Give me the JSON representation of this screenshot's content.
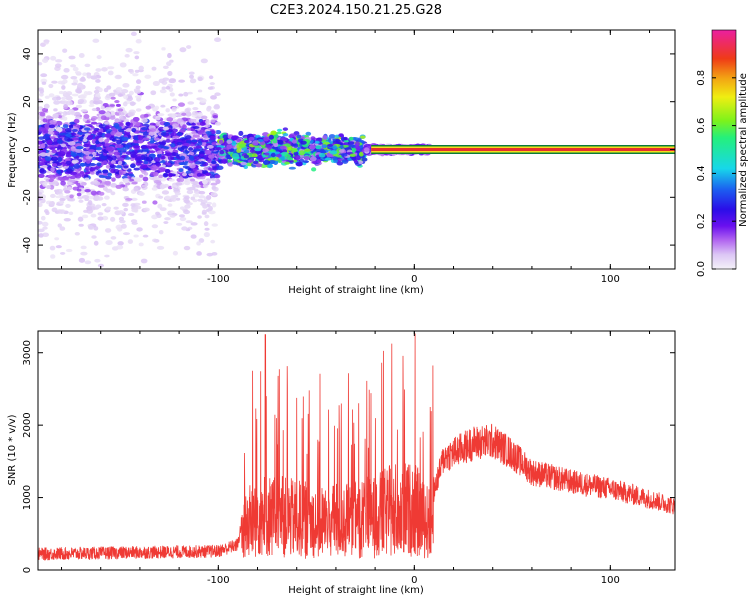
{
  "title": "C2E3.2024.150.21.25.G28",
  "colors": {
    "snr_line": "#ef3a34",
    "tone_line_core": "#e6312c",
    "tone_line_outer": "#0b7a3b",
    "colormap": [
      "#f4f2f8",
      "#dcc7f5",
      "#b266f0",
      "#6a10ef",
      "#2a0ee8",
      "#1c5cf0",
      "#17d7ea",
      "#25f07b",
      "#7df21b",
      "#f0ee12",
      "#f3a213",
      "#ef3b17",
      "#ec1fa0"
    ]
  },
  "chart_data": [
    {
      "type": "heatmap",
      "xlabel": "Height of straight line (km)",
      "ylabel": "Frequency (Hz)",
      "xlim": [
        -192,
        133
      ],
      "ylim": [
        -50,
        50
      ],
      "x_ticks": [
        "-100",
        "0",
        "100"
      ],
      "x_tick_values": [
        -100,
        0,
        100
      ],
      "y_ticks": [
        "-40",
        "-20",
        "0",
        "20",
        "40"
      ],
      "y_tick_values": [
        -40,
        -20,
        0,
        20,
        40
      ],
      "colorbar": {
        "label": "Normalized spectral amplitude",
        "range": [
          0,
          1
        ],
        "ticks": [
          "0.0",
          "0.2",
          "0.4",
          "0.6",
          "0.8"
        ],
        "tick_values": [
          0,
          0.2,
          0.4,
          0.6,
          0.8
        ]
      },
      "regions": [
        {
          "x_range": [
            -192,
            -100
          ],
          "freq_spread_hz": 50,
          "amplitude": 0.15,
          "core_spread_hz": 8,
          "core_amplitude": 0.3
        },
        {
          "x_range": [
            -100,
            -25
          ],
          "freq_spread_hz": 7,
          "amplitude": 0.35,
          "core_spread_hz": 3,
          "core_amplitude": 0.5
        },
        {
          "x_range": [
            -25,
            8
          ],
          "freq_spread_hz": 2,
          "amplitude": 0.25
        },
        {
          "x_range": [
            -22,
            133
          ],
          "freq_hz": 0,
          "amplitude": 0.95
        }
      ]
    },
    {
      "type": "line",
      "xlabel": "Height of straight line (km)",
      "ylabel": "SNR (10 * v/v)",
      "xlim": [
        -192,
        133
      ],
      "ylim": [
        0,
        3300
      ],
      "x_ticks": [
        "-100",
        "0",
        "100"
      ],
      "x_tick_values": [
        -100,
        0,
        100
      ],
      "y_ticks": [
        "0",
        "1000",
        "2000",
        "3000"
      ],
      "y_tick_values": [
        0,
        1000,
        2000,
        3000
      ],
      "envelope": [
        {
          "x": -192,
          "y": 220
        },
        {
          "x": -120,
          "y": 250
        },
        {
          "x": -100,
          "y": 260
        },
        {
          "x": -90,
          "y": 350
        },
        {
          "x": -87,
          "y": 850
        },
        {
          "x": -80,
          "y": 1100
        },
        {
          "x": -60,
          "y": 1000
        },
        {
          "x": -40,
          "y": 950
        },
        {
          "x": -20,
          "y": 1050
        },
        {
          "x": -10,
          "y": 1200
        },
        {
          "x": 0,
          "y": 1200
        },
        {
          "x": 8,
          "y": 900
        },
        {
          "x": 15,
          "y": 1550
        },
        {
          "x": 30,
          "y": 1750
        },
        {
          "x": 40,
          "y": 1780
        },
        {
          "x": 50,
          "y": 1600
        },
        {
          "x": 60,
          "y": 1350
        },
        {
          "x": 80,
          "y": 1220
        },
        {
          "x": 100,
          "y": 1120
        },
        {
          "x": 120,
          "y": 980
        },
        {
          "x": 133,
          "y": 880
        }
      ],
      "peak": {
        "x": -76,
        "y": 3250
      }
    }
  ]
}
